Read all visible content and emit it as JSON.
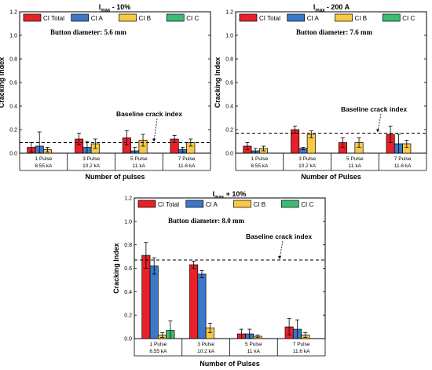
{
  "chart_data": [
    {
      "type": "bar",
      "title": {
        "main": "I",
        "sub": "max",
        "suffix": " - 10%"
      },
      "inset_text": "Button diameter: 5.6 mm",
      "xlabel": "Number of pulses",
      "ylabel": "Cracking Index",
      "ylim": [
        0,
        1.2
      ],
      "yticks": [
        "0.0",
        "0.2",
        "0.4",
        "0.6",
        "0.8",
        "1.0",
        "1.2"
      ],
      "categories": [
        {
          "line1": "1 Pulse",
          "line2": "8.55 kA"
        },
        {
          "line1": "3 Pulse",
          "line2": "10.2 kA"
        },
        {
          "line1": "5 Pulse",
          "line2": "11 kA"
        },
        {
          "line1": "7 Pulse",
          "line2": "11.6 kA"
        }
      ],
      "series": [
        {
          "name": "CI Total",
          "color": "#e8202a",
          "values": [
            0.05,
            0.12,
            0.13,
            0.12
          ],
          "errors": [
            0.04,
            0.05,
            0.06,
            0.03
          ]
        },
        {
          "name": "CI A",
          "color": "#3a78c8",
          "values": [
            0.06,
            0.05,
            0.02,
            0.03
          ],
          "errors": [
            0.12,
            0.05,
            0.03,
            0.02
          ]
        },
        {
          "name": "CI B",
          "color": "#f9c846",
          "values": [
            0.03,
            0.08,
            0.11,
            0.09
          ],
          "errors": [
            0.02,
            0.04,
            0.05,
            0.03
          ]
        },
        {
          "name": "CI C",
          "color": "#3dbb72",
          "values": [
            0,
            0,
            0,
            0
          ],
          "errors": [
            0,
            0,
            0,
            0
          ]
        }
      ],
      "baseline": {
        "value": 0.09,
        "label": "Baseline crack index"
      },
      "legend_position": "top"
    },
    {
      "type": "bar",
      "title": {
        "main": "I",
        "sub": "max",
        "suffix": " - 200 A"
      },
      "inset_text": "Button diameter: 7.6 mm",
      "xlabel": "Number of Pulses",
      "ylabel": "Cracking Index",
      "ylim": [
        0,
        1.2
      ],
      "yticks": [
        "0.0",
        "0.2",
        "0.4",
        "0.6",
        "0.8",
        "1.0",
        "1.2"
      ],
      "categories": [
        {
          "line1": "1 Pulse",
          "line2": "8.55 kA"
        },
        {
          "line1": "3 Pulse",
          "line2": "10.2 kA"
        },
        {
          "line1": "5 Pulse",
          "line2": "11 kA"
        },
        {
          "line1": "7 Pulse",
          "line2": "11.6 kA"
        }
      ],
      "series": [
        {
          "name": "CI Total",
          "color": "#e8202a",
          "values": [
            0.06,
            0.2,
            0.09,
            0.16
          ],
          "errors": [
            0.03,
            0.03,
            0.04,
            0.07
          ]
        },
        {
          "name": "CI A",
          "color": "#3a78c8",
          "values": [
            0.02,
            0.04,
            0,
            0.08
          ],
          "errors": [
            0.02,
            0.01,
            0,
            0.08
          ]
        },
        {
          "name": "CI B",
          "color": "#f9c846",
          "values": [
            0.04,
            0.16,
            0.09,
            0.08
          ],
          "errors": [
            0.02,
            0.03,
            0.04,
            0.03
          ]
        },
        {
          "name": "CI C",
          "color": "#3dbb72",
          "values": [
            0,
            0,
            0,
            0
          ],
          "errors": [
            0,
            0,
            0,
            0
          ]
        }
      ],
      "baseline": {
        "value": 0.17,
        "label": "Baseline crack index"
      },
      "legend_position": "top"
    },
    {
      "type": "bar",
      "title": {
        "main": "I",
        "sub": "max",
        "suffix": " + 10%"
      },
      "inset_text": "Button diameter: 8.0 mm",
      "xlabel": "Number of Pulses",
      "ylabel": "Cracking Index",
      "ylim": [
        0,
        1.2
      ],
      "yticks": [
        "0.0",
        "0.2",
        "0.4",
        "0.6",
        "0.8",
        "1.0",
        "1.2"
      ],
      "categories": [
        {
          "line1": "1 Pulse",
          "line2": "8.55 kA"
        },
        {
          "line1": "3 Pulse",
          "line2": "10.2 kA"
        },
        {
          "line1": "5 Pulse",
          "line2": "11 kA"
        },
        {
          "line1": "7 Pulse",
          "line2": "11.6 kA"
        }
      ],
      "series": [
        {
          "name": "CI Total",
          "color": "#e8202a",
          "values": [
            0.71,
            0.63,
            0.04,
            0.1
          ],
          "errors": [
            0.11,
            0.03,
            0.04,
            0.07
          ]
        },
        {
          "name": "CI A",
          "color": "#3a78c8",
          "values": [
            0.62,
            0.55,
            0.04,
            0.08
          ],
          "errors": [
            0.07,
            0.03,
            0.04,
            0.08
          ]
        },
        {
          "name": "CI B",
          "color": "#f9c846",
          "values": [
            0.03,
            0.09,
            0.02,
            0.03
          ],
          "errors": [
            0.02,
            0.04,
            0.01,
            0.02
          ]
        },
        {
          "name": "CI C",
          "color": "#3dbb72",
          "values": [
            0.07,
            0,
            0,
            0
          ],
          "errors": [
            0.08,
            0,
            0,
            0
          ]
        }
      ],
      "baseline": {
        "value": 0.67,
        "label": "Baseline crack index"
      },
      "legend_position": "top"
    }
  ]
}
